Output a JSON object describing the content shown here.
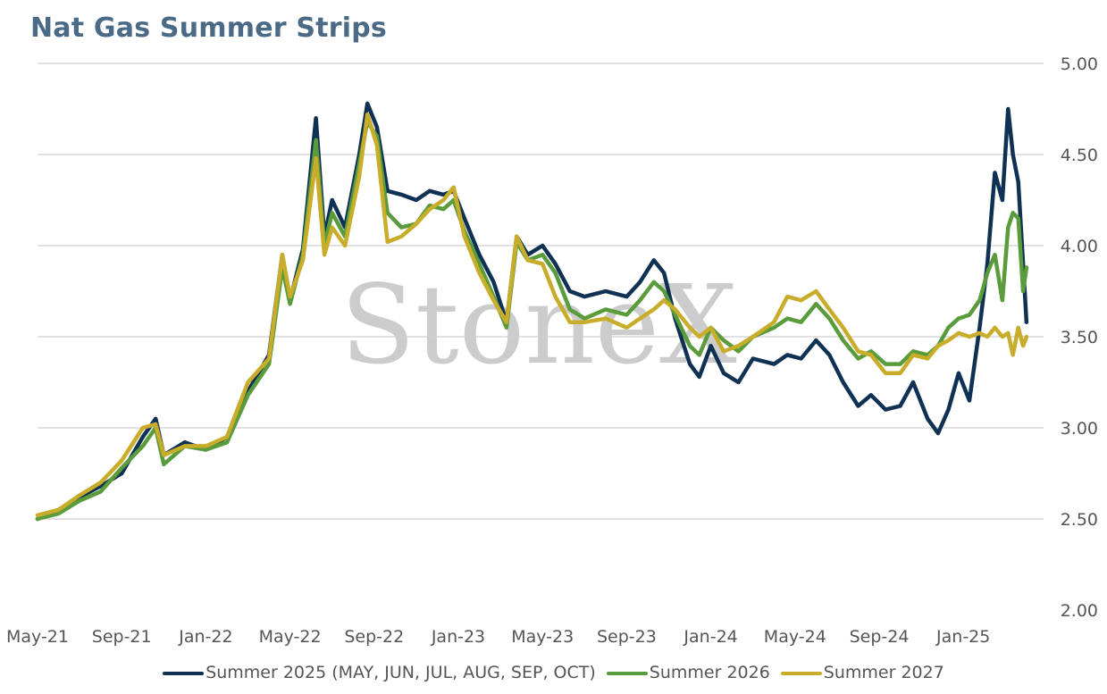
{
  "chart_data": {
    "type": "line",
    "title": "Nat Gas Summer Strips",
    "xlabel": "",
    "ylabel": "",
    "ylim": [
      2.0,
      5.0
    ],
    "y_ticks": [
      "2.00",
      "2.50",
      "3.00",
      "3.50",
      "4.00",
      "4.50",
      "5.00"
    ],
    "x_range": [
      "2021-05-01",
      "2025-04-01"
    ],
    "x_ticks": [
      "May-21",
      "Sep-21",
      "Jan-22",
      "May-22",
      "Sep-22",
      "Jan-23",
      "May-23",
      "Sep-23",
      "Jan-24",
      "May-24",
      "Sep-24",
      "Jan-25"
    ],
    "grid": true,
    "legend_position": "bottom",
    "watermark": "StoneX",
    "series": [
      {
        "name": "Summer 2025 (MAY, JUN, JUL, AUG, SEP, OCT)",
        "color": "#0f3254",
        "points": [
          [
            "2021-05-01",
            2.5
          ],
          [
            "2021-06-01",
            2.55
          ],
          [
            "2021-07-01",
            2.62
          ],
          [
            "2021-08-01",
            2.68
          ],
          [
            "2021-09-01",
            2.75
          ],
          [
            "2021-10-01",
            2.95
          ],
          [
            "2021-10-20",
            3.05
          ],
          [
            "2021-11-01",
            2.85
          ],
          [
            "2021-12-01",
            2.92
          ],
          [
            "2022-01-01",
            2.88
          ],
          [
            "2022-02-01",
            2.95
          ],
          [
            "2022-03-01",
            3.2
          ],
          [
            "2022-04-01",
            3.4
          ],
          [
            "2022-04-20",
            3.95
          ],
          [
            "2022-05-01",
            3.7
          ],
          [
            "2022-05-20",
            3.98
          ],
          [
            "2022-06-08",
            4.7
          ],
          [
            "2022-06-20",
            4.05
          ],
          [
            "2022-07-01",
            4.25
          ],
          [
            "2022-07-20",
            4.1
          ],
          [
            "2022-08-10",
            4.5
          ],
          [
            "2022-08-22",
            4.78
          ],
          [
            "2022-09-05",
            4.65
          ],
          [
            "2022-09-20",
            4.3
          ],
          [
            "2022-10-10",
            4.28
          ],
          [
            "2022-11-01",
            4.25
          ],
          [
            "2022-11-20",
            4.3
          ],
          [
            "2022-12-10",
            4.28
          ],
          [
            "2022-12-25",
            4.3
          ],
          [
            "2023-01-10",
            4.15
          ],
          [
            "2023-02-01",
            3.95
          ],
          [
            "2023-02-20",
            3.8
          ],
          [
            "2023-03-10",
            3.58
          ],
          [
            "2023-03-25",
            4.05
          ],
          [
            "2023-04-10",
            3.95
          ],
          [
            "2023-05-01",
            4.0
          ],
          [
            "2023-05-20",
            3.9
          ],
          [
            "2023-06-10",
            3.75
          ],
          [
            "2023-07-01",
            3.72
          ],
          [
            "2023-08-01",
            3.75
          ],
          [
            "2023-09-01",
            3.72
          ],
          [
            "2023-09-20",
            3.8
          ],
          [
            "2023-10-10",
            3.92
          ],
          [
            "2023-10-25",
            3.85
          ],
          [
            "2023-11-10",
            3.6
          ],
          [
            "2023-12-01",
            3.35
          ],
          [
            "2023-12-15",
            3.28
          ],
          [
            "2024-01-01",
            3.45
          ],
          [
            "2024-01-20",
            3.3
          ],
          [
            "2024-02-10",
            3.25
          ],
          [
            "2024-03-01",
            3.38
          ],
          [
            "2024-04-01",
            3.35
          ],
          [
            "2024-04-20",
            3.4
          ],
          [
            "2024-05-10",
            3.38
          ],
          [
            "2024-06-01",
            3.48
          ],
          [
            "2024-06-20",
            3.4
          ],
          [
            "2024-07-10",
            3.25
          ],
          [
            "2024-08-01",
            3.12
          ],
          [
            "2024-08-20",
            3.18
          ],
          [
            "2024-09-10",
            3.1
          ],
          [
            "2024-10-01",
            3.12
          ],
          [
            "2024-10-20",
            3.25
          ],
          [
            "2024-11-10",
            3.05
          ],
          [
            "2024-11-25",
            2.97
          ],
          [
            "2024-12-10",
            3.1
          ],
          [
            "2024-12-25",
            3.3
          ],
          [
            "2025-01-10",
            3.15
          ],
          [
            "2025-01-25",
            3.55
          ],
          [
            "2025-02-05",
            3.9
          ],
          [
            "2025-02-15",
            4.4
          ],
          [
            "2025-02-25",
            4.25
          ],
          [
            "2025-03-05",
            4.75
          ],
          [
            "2025-03-12",
            4.5
          ],
          [
            "2025-03-20",
            4.35
          ],
          [
            "2025-03-27",
            3.9
          ],
          [
            "2025-04-01",
            3.58
          ]
        ]
      },
      {
        "name": "Summer 2026",
        "color": "#5a9b3c",
        "points": [
          [
            "2021-05-01",
            2.5
          ],
          [
            "2021-06-01",
            2.53
          ],
          [
            "2021-07-01",
            2.6
          ],
          [
            "2021-08-01",
            2.65
          ],
          [
            "2021-09-01",
            2.78
          ],
          [
            "2021-10-01",
            2.9
          ],
          [
            "2021-10-20",
            3.0
          ],
          [
            "2021-11-01",
            2.8
          ],
          [
            "2021-12-01",
            2.9
          ],
          [
            "2022-01-01",
            2.88
          ],
          [
            "2022-02-01",
            2.92
          ],
          [
            "2022-03-01",
            3.18
          ],
          [
            "2022-04-01",
            3.35
          ],
          [
            "2022-04-20",
            3.88
          ],
          [
            "2022-05-01",
            3.68
          ],
          [
            "2022-05-20",
            3.95
          ],
          [
            "2022-06-08",
            4.58
          ],
          [
            "2022-06-20",
            4.0
          ],
          [
            "2022-07-01",
            4.18
          ],
          [
            "2022-07-20",
            4.05
          ],
          [
            "2022-08-10",
            4.45
          ],
          [
            "2022-08-22",
            4.68
          ],
          [
            "2022-09-05",
            4.6
          ],
          [
            "2022-09-20",
            4.18
          ],
          [
            "2022-10-10",
            4.1
          ],
          [
            "2022-11-01",
            4.12
          ],
          [
            "2022-11-20",
            4.22
          ],
          [
            "2022-12-10",
            4.2
          ],
          [
            "2022-12-25",
            4.25
          ],
          [
            "2023-01-10",
            4.08
          ],
          [
            "2023-02-01",
            3.9
          ],
          [
            "2023-02-20",
            3.72
          ],
          [
            "2023-03-10",
            3.55
          ],
          [
            "2023-03-25",
            4.02
          ],
          [
            "2023-04-10",
            3.92
          ],
          [
            "2023-05-01",
            3.95
          ],
          [
            "2023-05-20",
            3.85
          ],
          [
            "2023-06-10",
            3.65
          ],
          [
            "2023-07-01",
            3.6
          ],
          [
            "2023-08-01",
            3.65
          ],
          [
            "2023-09-01",
            3.62
          ],
          [
            "2023-09-20",
            3.7
          ],
          [
            "2023-10-10",
            3.8
          ],
          [
            "2023-10-25",
            3.75
          ],
          [
            "2023-11-10",
            3.62
          ],
          [
            "2023-12-01",
            3.45
          ],
          [
            "2023-12-15",
            3.4
          ],
          [
            "2024-01-01",
            3.55
          ],
          [
            "2024-01-20",
            3.48
          ],
          [
            "2024-02-10",
            3.42
          ],
          [
            "2024-03-01",
            3.5
          ],
          [
            "2024-04-01",
            3.55
          ],
          [
            "2024-04-20",
            3.6
          ],
          [
            "2024-05-10",
            3.58
          ],
          [
            "2024-06-01",
            3.68
          ],
          [
            "2024-06-20",
            3.6
          ],
          [
            "2024-07-10",
            3.48
          ],
          [
            "2024-08-01",
            3.38
          ],
          [
            "2024-08-20",
            3.42
          ],
          [
            "2024-09-10",
            3.35
          ],
          [
            "2024-10-01",
            3.35
          ],
          [
            "2024-10-20",
            3.42
          ],
          [
            "2024-11-10",
            3.4
          ],
          [
            "2024-11-25",
            3.45
          ],
          [
            "2024-12-10",
            3.55
          ],
          [
            "2024-12-25",
            3.6
          ],
          [
            "2025-01-10",
            3.62
          ],
          [
            "2025-01-25",
            3.7
          ],
          [
            "2025-02-05",
            3.85
          ],
          [
            "2025-02-15",
            3.95
          ],
          [
            "2025-02-25",
            3.7
          ],
          [
            "2025-03-05",
            4.1
          ],
          [
            "2025-03-12",
            4.18
          ],
          [
            "2025-03-20",
            4.15
          ],
          [
            "2025-03-27",
            3.75
          ],
          [
            "2025-04-01",
            3.88
          ]
        ]
      },
      {
        "name": "Summer 2027",
        "color": "#c8ad2b",
        "points": [
          [
            "2021-05-01",
            2.52
          ],
          [
            "2021-06-01",
            2.55
          ],
          [
            "2021-07-01",
            2.63
          ],
          [
            "2021-08-01",
            2.7
          ],
          [
            "2021-09-01",
            2.82
          ],
          [
            "2021-10-01",
            3.0
          ],
          [
            "2021-10-20",
            3.02
          ],
          [
            "2021-11-01",
            2.85
          ],
          [
            "2021-12-01",
            2.9
          ],
          [
            "2022-01-01",
            2.9
          ],
          [
            "2022-02-01",
            2.95
          ],
          [
            "2022-03-01",
            3.25
          ],
          [
            "2022-04-01",
            3.38
          ],
          [
            "2022-04-20",
            3.95
          ],
          [
            "2022-05-01",
            3.72
          ],
          [
            "2022-05-20",
            3.92
          ],
          [
            "2022-06-08",
            4.48
          ],
          [
            "2022-06-20",
            3.95
          ],
          [
            "2022-07-01",
            4.1
          ],
          [
            "2022-07-20",
            4.0
          ],
          [
            "2022-08-10",
            4.38
          ],
          [
            "2022-08-22",
            4.72
          ],
          [
            "2022-09-05",
            4.55
          ],
          [
            "2022-09-20",
            4.02
          ],
          [
            "2022-10-10",
            4.05
          ],
          [
            "2022-11-01",
            4.12
          ],
          [
            "2022-11-20",
            4.2
          ],
          [
            "2022-12-10",
            4.25
          ],
          [
            "2022-12-25",
            4.32
          ],
          [
            "2023-01-10",
            4.05
          ],
          [
            "2023-02-01",
            3.85
          ],
          [
            "2023-02-20",
            3.7
          ],
          [
            "2023-03-10",
            3.58
          ],
          [
            "2023-03-25",
            4.05
          ],
          [
            "2023-04-10",
            3.92
          ],
          [
            "2023-05-01",
            3.9
          ],
          [
            "2023-05-20",
            3.72
          ],
          [
            "2023-06-10",
            3.58
          ],
          [
            "2023-07-01",
            3.58
          ],
          [
            "2023-08-01",
            3.6
          ],
          [
            "2023-09-01",
            3.55
          ],
          [
            "2023-09-20",
            3.6
          ],
          [
            "2023-10-10",
            3.65
          ],
          [
            "2023-10-25",
            3.7
          ],
          [
            "2023-11-10",
            3.65
          ],
          [
            "2023-12-01",
            3.55
          ],
          [
            "2023-12-15",
            3.5
          ],
          [
            "2024-01-01",
            3.55
          ],
          [
            "2024-01-20",
            3.42
          ],
          [
            "2024-02-10",
            3.45
          ],
          [
            "2024-03-01",
            3.5
          ],
          [
            "2024-04-01",
            3.58
          ],
          [
            "2024-04-20",
            3.72
          ],
          [
            "2024-05-10",
            3.7
          ],
          [
            "2024-06-01",
            3.75
          ],
          [
            "2024-06-20",
            3.65
          ],
          [
            "2024-07-10",
            3.55
          ],
          [
            "2024-08-01",
            3.42
          ],
          [
            "2024-08-20",
            3.4
          ],
          [
            "2024-09-10",
            3.3
          ],
          [
            "2024-10-01",
            3.3
          ],
          [
            "2024-10-20",
            3.4
          ],
          [
            "2024-11-10",
            3.38
          ],
          [
            "2024-11-25",
            3.45
          ],
          [
            "2024-12-10",
            3.48
          ],
          [
            "2024-12-25",
            3.52
          ],
          [
            "2025-01-10",
            3.5
          ],
          [
            "2025-01-25",
            3.52
          ],
          [
            "2025-02-05",
            3.5
          ],
          [
            "2025-02-15",
            3.55
          ],
          [
            "2025-02-25",
            3.5
          ],
          [
            "2025-03-05",
            3.52
          ],
          [
            "2025-03-12",
            3.4
          ],
          [
            "2025-03-20",
            3.55
          ],
          [
            "2025-03-27",
            3.45
          ],
          [
            "2025-04-01",
            3.5
          ]
        ]
      }
    ]
  }
}
